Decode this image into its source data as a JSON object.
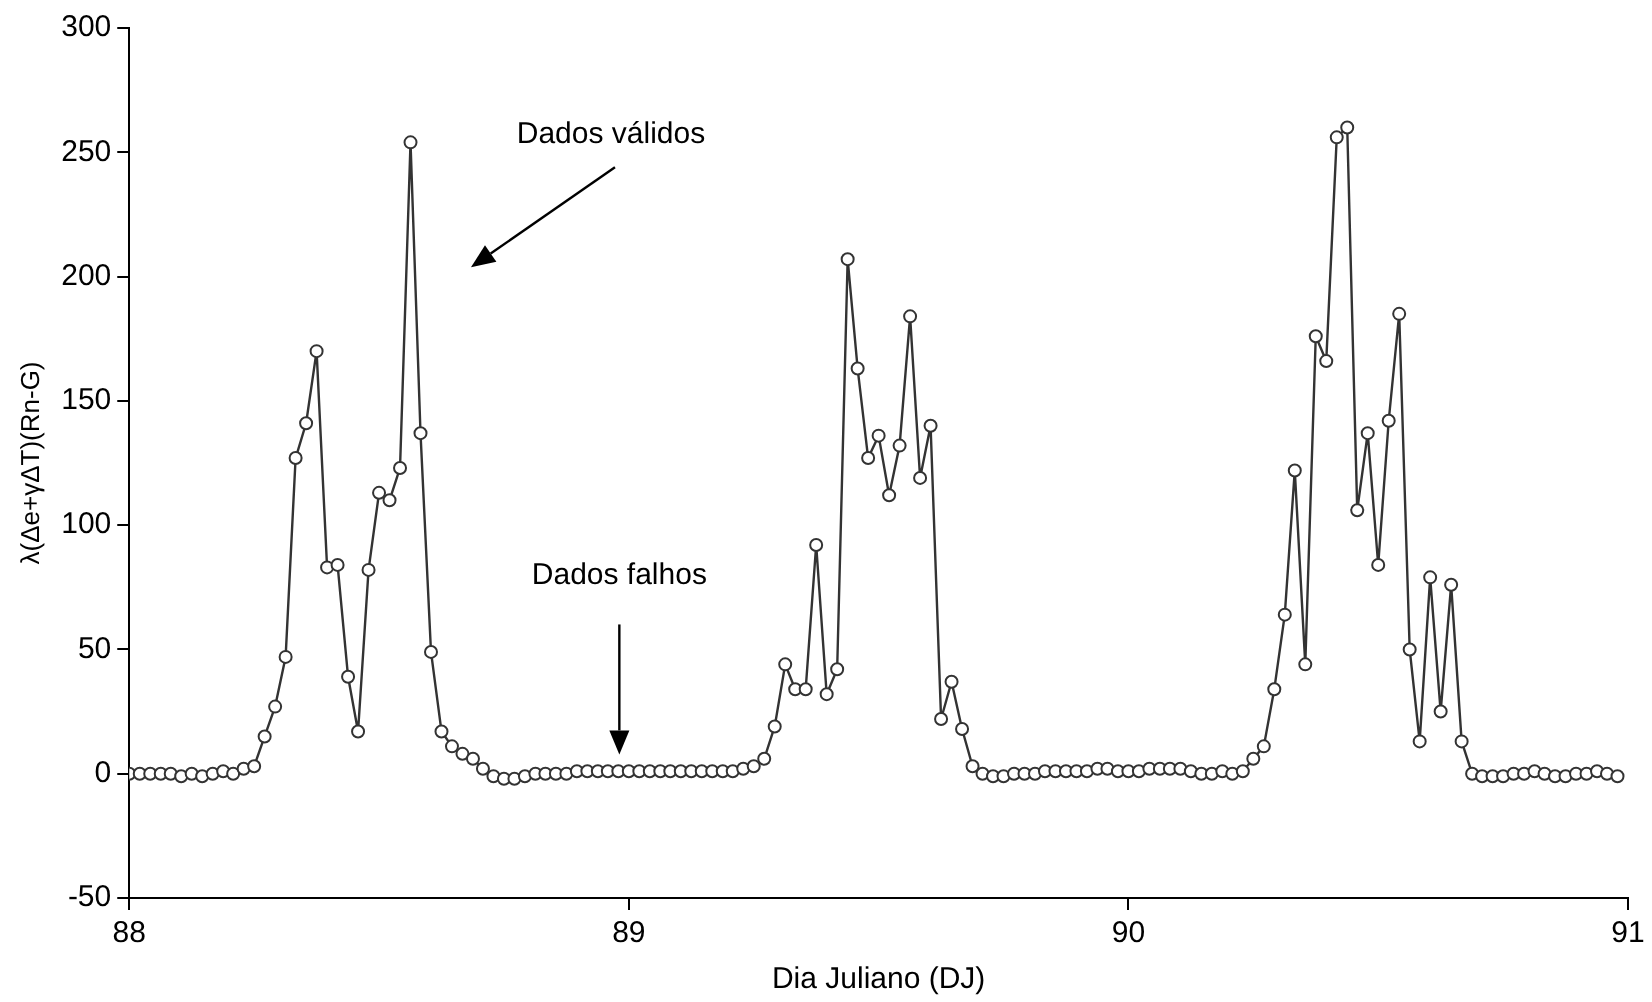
{
  "chart_data": {
    "type": "line",
    "xlabel": "Dia Juliano (DJ)",
    "ylabel": "λ(Δe+γΔT)(Rn-G)",
    "x": [
      88,
      88.021,
      88.042,
      88.063,
      88.083,
      88.104,
      88.125,
      88.146,
      88.167,
      88.188,
      88.208,
      88.229,
      88.25,
      88.271,
      88.292,
      88.313,
      88.333,
      88.354,
      88.375,
      88.396,
      88.417,
      88.438,
      88.458,
      88.479,
      88.5,
      88.521,
      88.542,
      88.563,
      88.583,
      88.604,
      88.625,
      88.646,
      88.667,
      88.688,
      88.708,
      88.729,
      88.75,
      88.771,
      88.792,
      88.813,
      88.833,
      88.854,
      88.875,
      88.896,
      88.917,
      88.938,
      88.958,
      88.979,
      89,
      89.021,
      89.042,
      89.063,
      89.083,
      89.104,
      89.125,
      89.146,
      89.167,
      89.188,
      89.208,
      89.229,
      89.25,
      89.271,
      89.292,
      89.313,
      89.333,
      89.354,
      89.375,
      89.396,
      89.417,
      89.438,
      89.458,
      89.479,
      89.5,
      89.521,
      89.542,
      89.563,
      89.583,
      89.604,
      89.625,
      89.646,
      89.667,
      89.688,
      89.708,
      89.729,
      89.75,
      89.771,
      89.792,
      89.813,
      89.833,
      89.854,
      89.875,
      89.896,
      89.917,
      89.938,
      89.958,
      89.979,
      90,
      90.021,
      90.042,
      90.063,
      90.083,
      90.104,
      90.125,
      90.146,
      90.167,
      90.188,
      90.208,
      90.229,
      90.25,
      90.271,
      90.292,
      90.313,
      90.333,
      90.354,
      90.375,
      90.396,
      90.417,
      90.438,
      90.458,
      90.479,
      90.5,
      90.521,
      90.542,
      90.563,
      90.583,
      90.604,
      90.625,
      90.646,
      90.667,
      90.688,
      90.708,
      90.729,
      90.75,
      90.771,
      90.792,
      90.813,
      90.833,
      90.854,
      90.875,
      90.896,
      90.917,
      90.938,
      90.958,
      90.979
    ],
    "values": [
      0,
      0,
      0,
      0,
      0,
      -1,
      0,
      -1,
      0,
      1,
      0,
      2,
      3,
      15,
      27,
      47,
      127,
      141,
      170,
      83,
      84,
      39,
      17,
      82,
      113,
      110,
      123,
      254,
      137,
      49,
      17,
      11,
      8,
      6,
      2,
      -1,
      -2,
      -2,
      -1,
      0,
      0,
      0,
      0,
      1,
      1,
      1,
      1,
      1,
      1,
      1,
      1,
      1,
      1,
      1,
      1,
      1,
      1,
      1,
      1,
      2,
      3,
      6,
      19,
      44,
      34,
      34,
      92,
      32,
      42,
      207,
      163,
      127,
      136,
      112,
      132,
      184,
      119,
      140,
      22,
      37,
      18,
      3,
      0,
      -1,
      -1,
      0,
      0,
      0,
      1,
      1,
      1,
      1,
      1,
      2,
      2,
      1,
      1,
      1,
      2,
      2,
      2,
      2,
      1,
      0,
      0,
      1,
      0,
      1,
      6,
      11,
      34,
      64,
      122,
      44,
      176,
      166,
      256,
      260,
      106,
      137,
      84,
      142,
      185,
      50,
      13,
      79,
      25,
      76,
      13,
      0,
      -1,
      -1,
      -1,
      0,
      0,
      1,
      0,
      -1,
      -1,
      0,
      0,
      1,
      0,
      -1
    ],
    "color": "#333333",
    "marker": "circle",
    "line_style": "solid",
    "grid": false,
    "legend": false,
    "xlim": [
      88,
      91
    ],
    "xticks": [
      88,
      89,
      90,
      91
    ],
    "ylim": [
      -50,
      300
    ],
    "yticks": [
      -50,
      0,
      50,
      100,
      150,
      200,
      250,
      300
    ],
    "annotations": [
      "Dados válidos",
      "Dados falhos"
    ]
  }
}
